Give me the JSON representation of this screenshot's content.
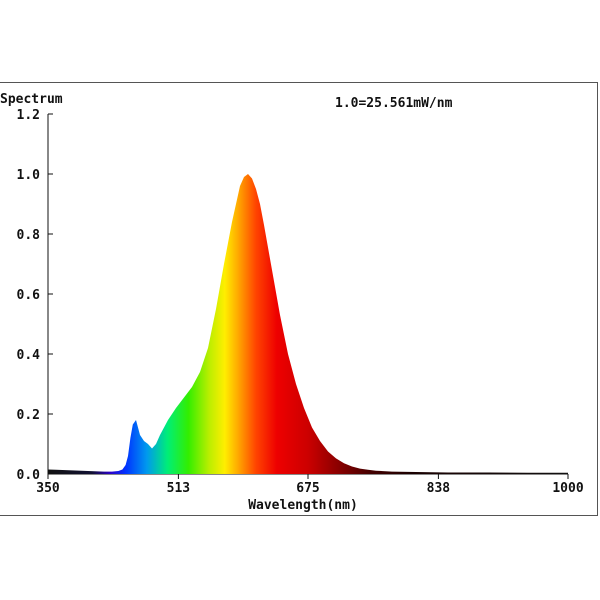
{
  "chart_data": {
    "type": "area",
    "title": "",
    "ylabel": "Spectrum",
    "xlabel": "Wavelength(nm)",
    "annotation": "1.0=25.561mW/nm",
    "xlim": [
      350,
      1000
    ],
    "ylim": [
      0,
      1.2
    ],
    "x_ticks": [
      "350",
      "513",
      "675",
      "838",
      "1000"
    ],
    "y_ticks": [
      "0.0",
      "0.2",
      "0.4",
      "0.6",
      "0.8",
      "1.0",
      "1.2"
    ],
    "fill": "visible-spectrum-gradient",
    "series": [
      {
        "x": [
          350,
          360,
          380,
          400,
          420,
          430,
          438,
          443,
          447,
          450,
          453,
          456,
          460,
          465,
          470,
          475,
          480,
          485,
          490,
          500,
          510,
          520,
          530,
          540,
          550,
          560,
          570,
          580,
          590,
          595,
          600,
          605,
          610,
          615,
          620,
          630,
          640,
          650,
          660,
          670,
          680,
          690,
          700,
          710,
          720,
          730,
          740,
          750,
          760,
          780,
          800,
          850,
          900,
          950,
          1000
        ],
        "values": [
          0.015,
          0.014,
          0.012,
          0.01,
          0.008,
          0.008,
          0.01,
          0.015,
          0.03,
          0.06,
          0.12,
          0.165,
          0.18,
          0.13,
          0.11,
          0.1,
          0.085,
          0.1,
          0.13,
          0.18,
          0.22,
          0.255,
          0.29,
          0.34,
          0.42,
          0.55,
          0.7,
          0.84,
          0.96,
          0.99,
          1.0,
          0.985,
          0.95,
          0.9,
          0.83,
          0.68,
          0.53,
          0.4,
          0.3,
          0.22,
          0.155,
          0.11,
          0.075,
          0.052,
          0.036,
          0.025,
          0.018,
          0.014,
          0.011,
          0.008,
          0.007,
          0.005,
          0.005,
          0.004,
          0.004
        ]
      }
    ]
  }
}
